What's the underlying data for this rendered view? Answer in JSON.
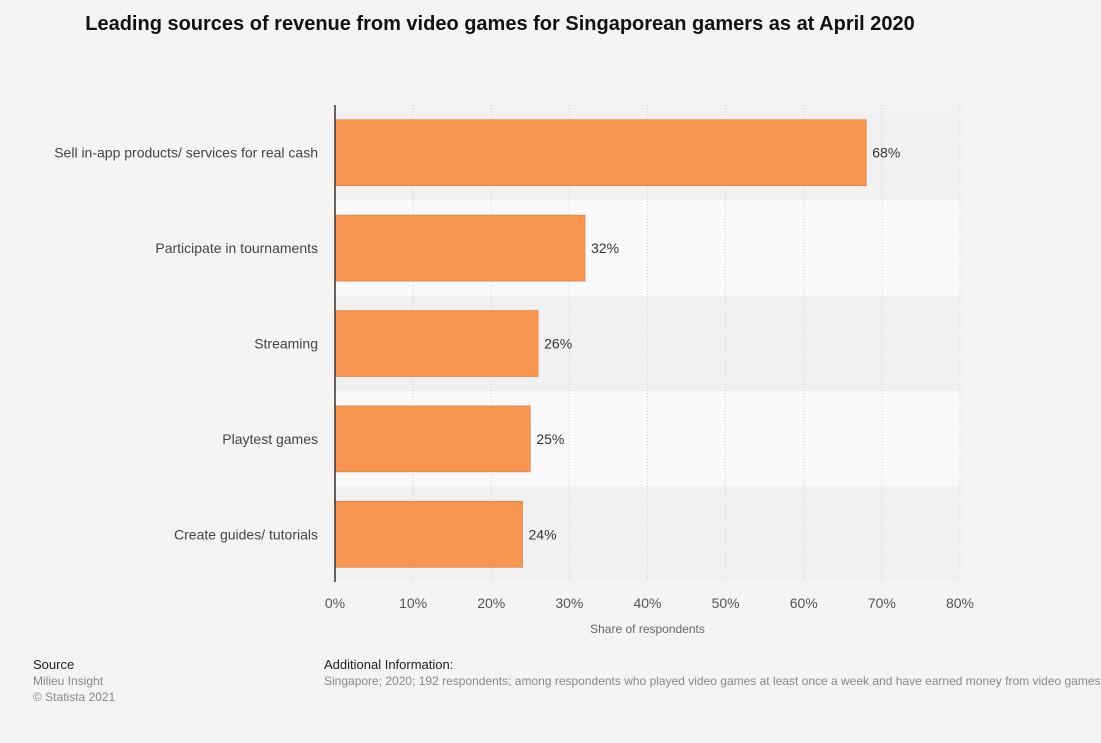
{
  "chart_data": {
    "type": "bar",
    "orientation": "horizontal",
    "title": "Leading sources of revenue from video games for Singaporean gamers as at April 2020",
    "categories": [
      "Sell in-app products/ services for real cash",
      "Participate in tournaments",
      "Streaming",
      "Playtest games",
      "Create guides/ tutorials"
    ],
    "values": [
      68,
      32,
      26,
      25,
      24
    ],
    "value_labels": [
      "68%",
      "32%",
      "26%",
      "25%",
      "24%"
    ],
    "xlabel": "Share of respondents",
    "ylabel": "",
    "xlim": [
      0,
      80
    ],
    "ticks": [
      0,
      10,
      20,
      30,
      40,
      50,
      60,
      70,
      80
    ],
    "tick_labels": [
      "0%",
      "10%",
      "20%",
      "30%",
      "40%",
      "50%",
      "60%",
      "70%",
      "80%"
    ],
    "grid": true,
    "bar_color": "#f79550"
  },
  "source": {
    "heading": "Source",
    "lines": [
      "Milieu Insight",
      "© Statista 2021"
    ]
  },
  "additional_info": {
    "heading": "Additional Information:",
    "text": "Singapore; 2020; 192 respondents; among respondents who played video games at least once a week and have earned money from video games"
  }
}
